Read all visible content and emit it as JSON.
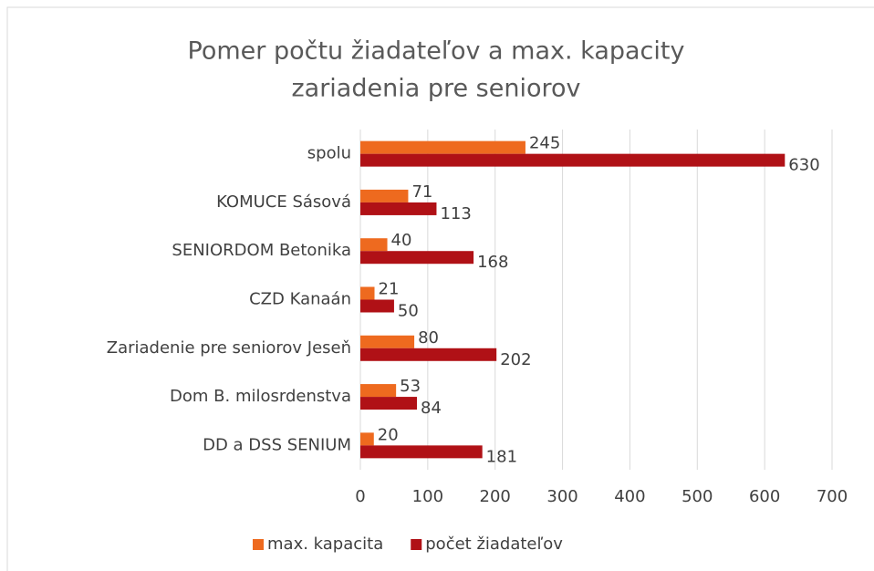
{
  "chart_data": {
    "type": "hbar",
    "title": [
      "Pomer počtu žiadateľov  a max. kapacity",
      "zariadenia pre seniorov"
    ],
    "categories": [
      "spolu",
      "KOMUCE Sásová",
      "SENIORDOM Betonika",
      "CZD Kanaán",
      "Zariadenie pre seniorov Jeseň",
      "Dom B. milosrdenstva",
      "DD a DSS SENIUM"
    ],
    "series": [
      {
        "name": "max. kapacita",
        "color": "#ee6a1f",
        "values": [
          245,
          71,
          40,
          21,
          80,
          53,
          20
        ]
      },
      {
        "name": "počet žiadateľov",
        "color": "#b01116",
        "values": [
          630,
          113,
          168,
          50,
          202,
          84,
          181
        ]
      }
    ],
    "xlim": [
      0,
      700
    ],
    "xticks": [
      0,
      100,
      200,
      300,
      400,
      500,
      600,
      700
    ],
    "grid": true,
    "legend": "bottom"
  }
}
